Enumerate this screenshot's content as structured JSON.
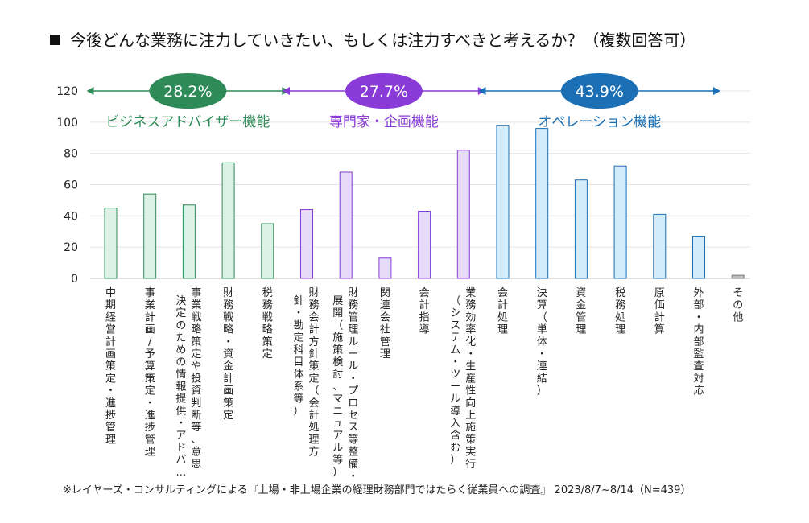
{
  "title": "今後どんな業務に注力していきたい、もしくは注力すべきと考えるか？（複数回答可）",
  "footnote": "※レイヤーズ・コンサルティングによる『上場・非上場企業の経理財務部門ではたらく従業員への調査』 2023/8/7~8/14（N=439）",
  "chart_data": {
    "type": "bar",
    "ylim": [
      0,
      120
    ],
    "yticks": [
      "0",
      "20",
      "40",
      "60",
      "80",
      "100",
      "120"
    ],
    "grid": true,
    "categories": [
      [
        "中期経営計画策定・進捗管理"
      ],
      [
        "事業計画/予算策定・進捗管理"
      ],
      [
        "事業戦略策定や投資判断等、意思",
        "決定のための情報提供・アドバ…"
      ],
      [
        "財務戦略・資金計画策定"
      ],
      [
        "税務戦略策定"
      ],
      [
        "財務会計方針策定（会計処理方",
        "針・勘定科目体系等）"
      ],
      [
        "財務管理ルール・プロセス等整備・",
        "展開（施策検討、マニュアル等）"
      ],
      [
        "関連会社管理"
      ],
      [
        "会計指導"
      ],
      [
        "業務効率化・生産性向上施策実行",
        "（システム・ツール導入含む）"
      ],
      [
        "会計処理"
      ],
      [
        "決算（単体・連結）"
      ],
      [
        "資金管理"
      ],
      [
        "税務処理"
      ],
      [
        "原価計算"
      ],
      [
        "外部・内部監査対応"
      ],
      [
        "その他"
      ]
    ],
    "values": [
      45,
      54,
      47,
      74,
      35,
      44,
      68,
      13,
      43,
      82,
      98,
      96,
      63,
      72,
      41,
      27,
      2
    ],
    "groups": [
      {
        "label": "ビジネスアドバイザー機能",
        "percent": "28.2%",
        "start": 0,
        "end": 4,
        "color": "#2e8b57",
        "fill": "#dcf2e6"
      },
      {
        "label": "専門家・企画機能",
        "percent": "27.7%",
        "start": 5,
        "end": 9,
        "color": "#8a3ad6",
        "fill": "#e6dcfa"
      },
      {
        "label": "オペレーション機能",
        "percent": "43.9%",
        "start": 10,
        "end": 15,
        "color": "#1a6fb5",
        "fill": "#d3ecfb"
      }
    ],
    "other_style": {
      "color": "#777777",
      "fill": "#bdbdbd"
    }
  }
}
